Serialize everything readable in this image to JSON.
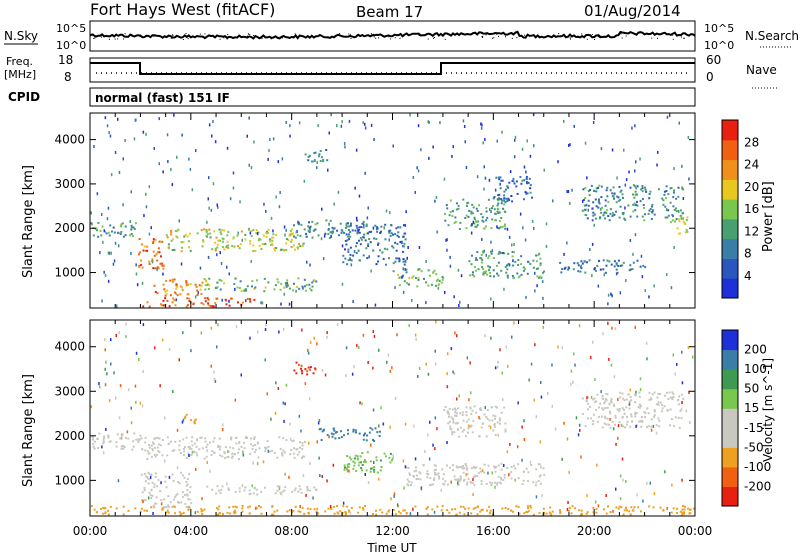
{
  "header": {
    "title": "Fort Hays West (fitACF)",
    "beam": "Beam 17",
    "date": "01/Aug/2014"
  },
  "noise_panel": {
    "left_label": "N.Sky",
    "right_label": "N.Search",
    "left_ticks": [
      "10^5",
      "10^0"
    ],
    "right_ticks": [
      "10^5",
      "10^0"
    ]
  },
  "freq_panel": {
    "left_label_line1": "Freq.",
    "left_label_line2": "[MHz]",
    "right_label": "Nave",
    "left_ticks": [
      "18",
      "8"
    ],
    "right_ticks": [
      "60",
      "0"
    ]
  },
  "cpid_panel": {
    "label": "CPID",
    "mode": "normal (fast) 151 IF"
  },
  "x_axis": {
    "title": "Time UT",
    "ticks": [
      "00:00",
      "04:00",
      "08:00",
      "12:00",
      "16:00",
      "20:00",
      "00:00"
    ],
    "hours": [
      0,
      4,
      8,
      12,
      16,
      20,
      24
    ]
  },
  "colors": {
    "power": [
      "#1e30d8",
      "#2a56c0",
      "#3a7ea8",
      "#48a070",
      "#78c850",
      "#e8c81e",
      "#f09018",
      "#f06010",
      "#e82010"
    ],
    "velocity": [
      "#e82010",
      "#f06010",
      "#f0a020",
      "#c8c8c0",
      "#c8c8c0",
      "#78c850",
      "#3e9a50",
      "#3a7ea8",
      "#1e30d8"
    ]
  },
  "chart_data": [
    {
      "type": "heatmap",
      "name": "power",
      "ylabel": "Slant Range [km]",
      "yticks": [
        1000,
        2000,
        3000,
        4000
      ],
      "ylim": [
        200,
        4600
      ],
      "xlim": [
        0,
        24
      ],
      "colorbar": {
        "label": "Power [dB]",
        "ticks": [
          4,
          8,
          12,
          16,
          20,
          24,
          28
        ],
        "range": [
          0,
          32
        ]
      },
      "regions": [
        {
          "t0": 0.0,
          "t1": 1.8,
          "r0": 1750,
          "r1": 2150,
          "level": 12
        },
        {
          "t0": 1.9,
          "t1": 3.0,
          "r0": 1100,
          "r1": 1800,
          "level": 26
        },
        {
          "t0": 2.0,
          "t1": 6.5,
          "r0": 250,
          "r1": 450,
          "level": 27
        },
        {
          "t0": 2.5,
          "t1": 4.5,
          "r0": 500,
          "r1": 900,
          "level": 24
        },
        {
          "t0": 3.0,
          "t1": 8.5,
          "r0": 1500,
          "r1": 2000,
          "level": 18
        },
        {
          "t0": 4.5,
          "t1": 9.0,
          "r0": 600,
          "r1": 900,
          "level": 14
        },
        {
          "t0": 8.0,
          "t1": 11.0,
          "r0": 1800,
          "r1": 2200,
          "level": 10
        },
        {
          "t0": 8.5,
          "t1": 9.5,
          "r0": 3500,
          "r1": 3800,
          "level": 10
        },
        {
          "t0": 10.0,
          "t1": 12.5,
          "r0": 1200,
          "r1": 2100,
          "level": 8
        },
        {
          "t0": 12.0,
          "t1": 14.0,
          "r0": 700,
          "r1": 1100,
          "level": 14
        },
        {
          "t0": 14.0,
          "t1": 16.5,
          "r0": 2000,
          "r1": 2700,
          "level": 12
        },
        {
          "t0": 15.0,
          "t1": 18.0,
          "r0": 900,
          "r1": 1500,
          "level": 12
        },
        {
          "t0": 16.0,
          "t1": 17.5,
          "r0": 2600,
          "r1": 3200,
          "level": 8
        },
        {
          "t0": 18.5,
          "t1": 22.0,
          "r0": 1000,
          "r1": 1300,
          "level": 8
        },
        {
          "t0": 19.5,
          "t1": 23.5,
          "r0": 2200,
          "r1": 3000,
          "level": 10
        },
        {
          "t0": 23.0,
          "t1": 24.0,
          "r0": 1900,
          "r1": 2300,
          "level": 18
        }
      ]
    },
    {
      "type": "heatmap",
      "name": "velocity",
      "ylabel": "Slant Range [km]",
      "yticks": [
        1000,
        2000,
        3000,
        4000
      ],
      "ylim": [
        200,
        4600
      ],
      "xlim": [
        0,
        24
      ],
      "colorbar": {
        "label": "Velocity [m s^-1]",
        "ticks": [
          -200,
          -100,
          -50,
          -15,
          15,
          50,
          100,
          200
        ],
        "range": [
          -250,
          250
        ]
      },
      "regions": [
        {
          "t0": 0.0,
          "t1": 2.0,
          "r0": 1700,
          "r1": 2100,
          "v": 0
        },
        {
          "t0": 2.0,
          "t1": 8.5,
          "r0": 1500,
          "r1": 2000,
          "v": 0
        },
        {
          "t0": 2.0,
          "t1": 4.0,
          "r0": 400,
          "r1": 1200,
          "v": 0
        },
        {
          "t0": 3.5,
          "t1": 4.2,
          "r0": 2300,
          "r1": 2500,
          "v": -80
        },
        {
          "t0": 4.5,
          "t1": 9.0,
          "r0": 700,
          "r1": 900,
          "v": 0
        },
        {
          "t0": 8.0,
          "t1": 9.0,
          "r0": 3400,
          "r1": 3700,
          "v": -200
        },
        {
          "t0": 9.0,
          "t1": 11.5,
          "r0": 1900,
          "r1": 2200,
          "v": 150
        },
        {
          "t0": 10.0,
          "t1": 12.0,
          "r0": 1200,
          "r1": 1700,
          "v": 40
        },
        {
          "t0": 12.5,
          "t1": 18.0,
          "r0": 900,
          "r1": 1400,
          "v": 0
        },
        {
          "t0": 14.0,
          "t1": 16.5,
          "r0": 2000,
          "r1": 2700,
          "v": 0
        },
        {
          "t0": 19.5,
          "t1": 23.5,
          "r0": 2200,
          "r1": 3000,
          "v": 0
        },
        {
          "t0": 0.0,
          "t1": 24.0,
          "r0": 250,
          "r1": 450,
          "v": -40
        }
      ]
    }
  ]
}
